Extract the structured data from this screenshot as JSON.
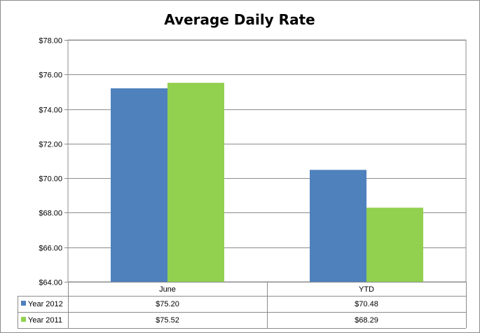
{
  "chart_data": {
    "type": "bar",
    "title": "Average Daily Rate",
    "categories": [
      "June",
      "YTD"
    ],
    "series": [
      {
        "name": "Year 2012",
        "values": [
          75.2,
          70.48
        ],
        "labels": [
          "$75.20",
          "$70.48"
        ],
        "color": "#4f81bd"
      },
      {
        "name": "Year 2011",
        "values": [
          75.52,
          68.29
        ],
        "labels": [
          "$75.52",
          "$68.29"
        ],
        "color": "#92d050"
      }
    ],
    "ylim": [
      64,
      78
    ],
    "yticks": [
      64,
      66,
      68,
      70,
      72,
      74,
      76,
      78
    ],
    "ytick_labels": [
      "$64.00",
      "$66.00",
      "$68.00",
      "$70.00",
      "$72.00",
      "$74.00",
      "$76.00",
      "$78.00"
    ],
    "grid": true,
    "legend": "data-table",
    "data_table": true,
    "xlabel": "",
    "ylabel": ""
  }
}
